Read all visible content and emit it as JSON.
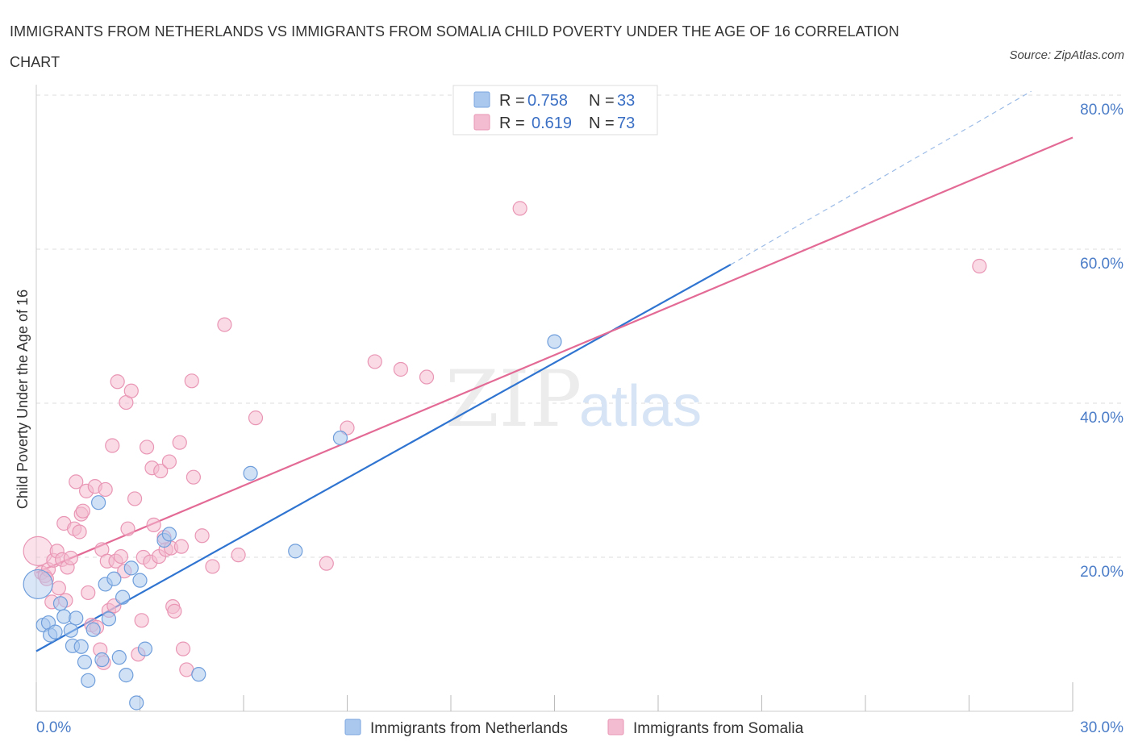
{
  "title": "IMMIGRANTS FROM NETHERLANDS VS IMMIGRANTS FROM SOMALIA CHILD POVERTY UNDER THE AGE OF 16 CORRELATION CHART",
  "source": "Source: ZipAtlas.com",
  "watermark": {
    "zip": "ZIP",
    "atlas": "atlas"
  },
  "colors": {
    "netherlands": "#2f74d0",
    "netherlands_fill": "#aac8ee",
    "somalia": "#e36a95",
    "somalia_fill": "#f4bcd0",
    "tick_text": "#4a7cc7",
    "grid": "#dddddd"
  },
  "legend": {
    "netherlands": {
      "r_label": "R =",
      "r_value": "0.758",
      "n_label": "N =",
      "n_value": "33"
    },
    "somalia": {
      "r_label": "R =",
      "r_value": "0.619",
      "n_label": "N =",
      "n_value": "73"
    }
  },
  "chart_data": {
    "type": "scatter",
    "title": "IMMIGRANTS FROM NETHERLANDS VS IMMIGRANTS FROM SOMALIA CHILD POVERTY UNDER THE AGE OF 16 CORRELATION CHART",
    "xlabel": "",
    "ylabel": "Child Poverty Under the Age of 16",
    "xlim": [
      0,
      30
    ],
    "ylim": [
      0,
      80
    ],
    "x_tick_labels": [
      "0.0%",
      "30.0%"
    ],
    "y_ticks": [
      20,
      40,
      60,
      80
    ],
    "y_tick_labels": [
      "20.0%",
      "40.0%",
      "60.0%",
      "80.0%"
    ],
    "grid": true,
    "legend_position": "top-center",
    "series": [
      {
        "name": "Immigrants from Netherlands",
        "color": "#2f74d0",
        "trend": {
          "x": [
            0,
            20.1
          ],
          "y": [
            7.8,
            58.0
          ],
          "dashed_extension_to": [
            28.8,
            80.5
          ]
        },
        "points": [
          {
            "x": 0.05,
            "y": 16.5,
            "big": true
          },
          {
            "x": 0.2,
            "y": 11.2
          },
          {
            "x": 0.35,
            "y": 11.5
          },
          {
            "x": 0.4,
            "y": 9.9
          },
          {
            "x": 0.55,
            "y": 10.3
          },
          {
            "x": 0.7,
            "y": 14.0
          },
          {
            "x": 0.8,
            "y": 12.3
          },
          {
            "x": 1.0,
            "y": 10.5
          },
          {
            "x": 1.05,
            "y": 8.5
          },
          {
            "x": 1.15,
            "y": 12.1
          },
          {
            "x": 1.3,
            "y": 8.4
          },
          {
            "x": 1.4,
            "y": 6.4
          },
          {
            "x": 1.5,
            "y": 4.0
          },
          {
            "x": 1.65,
            "y": 10.6
          },
          {
            "x": 1.8,
            "y": 27.1
          },
          {
            "x": 1.9,
            "y": 6.7
          },
          {
            "x": 2.0,
            "y": 16.5
          },
          {
            "x": 2.1,
            "y": 12.0
          },
          {
            "x": 2.25,
            "y": 17.2
          },
          {
            "x": 2.4,
            "y": 7.0
          },
          {
            "x": 2.5,
            "y": 14.8
          },
          {
            "x": 2.6,
            "y": 4.7
          },
          {
            "x": 2.75,
            "y": 18.6
          },
          {
            "x": 2.9,
            "y": 1.1
          },
          {
            "x": 3.0,
            "y": 17.0
          },
          {
            "x": 3.15,
            "y": 8.1
          },
          {
            "x": 3.7,
            "y": 22.2
          },
          {
            "x": 3.85,
            "y": 23.0
          },
          {
            "x": 4.7,
            "y": 4.8
          },
          {
            "x": 6.2,
            "y": 30.9
          },
          {
            "x": 7.5,
            "y": 20.8
          },
          {
            "x": 8.8,
            "y": 35.5
          },
          {
            "x": 15.0,
            "y": 48.0
          }
        ]
      },
      {
        "name": "Immigrants from Somalia",
        "color": "#e36a95",
        "trend": {
          "x": [
            0,
            30
          ],
          "y": [
            18.0,
            74.5
          ]
        },
        "points": [
          {
            "x": 0.05,
            "y": 20.8,
            "big": true
          },
          {
            "x": 0.15,
            "y": 18.0
          },
          {
            "x": 0.25,
            "y": 17.6
          },
          {
            "x": 0.35,
            "y": 18.4
          },
          {
            "x": 0.45,
            "y": 14.2
          },
          {
            "x": 0.5,
            "y": 19.6
          },
          {
            "x": 0.6,
            "y": 20.8
          },
          {
            "x": 0.65,
            "y": 16.0
          },
          {
            "x": 0.75,
            "y": 19.7
          },
          {
            "x": 0.8,
            "y": 24.4
          },
          {
            "x": 0.85,
            "y": 14.4
          },
          {
            "x": 0.9,
            "y": 18.7
          },
          {
            "x": 1.0,
            "y": 19.9
          },
          {
            "x": 1.1,
            "y": 23.7
          },
          {
            "x": 1.15,
            "y": 29.8
          },
          {
            "x": 1.25,
            "y": 23.3
          },
          {
            "x": 1.3,
            "y": 25.6
          },
          {
            "x": 1.35,
            "y": 26.0
          },
          {
            "x": 1.45,
            "y": 28.6
          },
          {
            "x": 1.5,
            "y": 15.4
          },
          {
            "x": 1.6,
            "y": 11.2
          },
          {
            "x": 1.7,
            "y": 29.2
          },
          {
            "x": 1.75,
            "y": 10.9
          },
          {
            "x": 1.85,
            "y": 8.0
          },
          {
            "x": 1.9,
            "y": 21.0
          },
          {
            "x": 1.95,
            "y": 6.3
          },
          {
            "x": 2.0,
            "y": 28.8
          },
          {
            "x": 2.05,
            "y": 19.5
          },
          {
            "x": 2.1,
            "y": 13.1
          },
          {
            "x": 2.2,
            "y": 34.5
          },
          {
            "x": 2.25,
            "y": 13.7
          },
          {
            "x": 2.3,
            "y": 19.5
          },
          {
            "x": 2.35,
            "y": 42.8
          },
          {
            "x": 2.45,
            "y": 20.1
          },
          {
            "x": 2.55,
            "y": 18.2
          },
          {
            "x": 2.6,
            "y": 40.1
          },
          {
            "x": 2.65,
            "y": 23.7
          },
          {
            "x": 2.75,
            "y": 41.6
          },
          {
            "x": 2.85,
            "y": 27.6
          },
          {
            "x": 2.95,
            "y": 7.4
          },
          {
            "x": 3.05,
            "y": 11.8
          },
          {
            "x": 3.1,
            "y": 20.0
          },
          {
            "x": 3.2,
            "y": 34.3
          },
          {
            "x": 3.3,
            "y": 19.4
          },
          {
            "x": 3.35,
            "y": 31.6
          },
          {
            "x": 3.4,
            "y": 24.2
          },
          {
            "x": 3.55,
            "y": 20.1
          },
          {
            "x": 3.6,
            "y": 31.2
          },
          {
            "x": 3.7,
            "y": 22.6
          },
          {
            "x": 3.75,
            "y": 21.0
          },
          {
            "x": 3.85,
            "y": 32.4
          },
          {
            "x": 3.9,
            "y": 21.2
          },
          {
            "x": 3.95,
            "y": 13.6
          },
          {
            "x": 4.0,
            "y": 13.0
          },
          {
            "x": 4.15,
            "y": 34.9
          },
          {
            "x": 4.2,
            "y": 21.4
          },
          {
            "x": 4.25,
            "y": 8.1
          },
          {
            "x": 4.35,
            "y": 5.4
          },
          {
            "x": 4.5,
            "y": 42.9
          },
          {
            "x": 4.55,
            "y": 30.4
          },
          {
            "x": 4.8,
            "y": 22.8
          },
          {
            "x": 5.1,
            "y": 18.8
          },
          {
            "x": 5.45,
            "y": 50.2
          },
          {
            "x": 5.85,
            "y": 20.3
          },
          {
            "x": 6.35,
            "y": 38.1
          },
          {
            "x": 8.4,
            "y": 19.2
          },
          {
            "x": 9.0,
            "y": 36.8
          },
          {
            "x": 9.8,
            "y": 45.4
          },
          {
            "x": 10.55,
            "y": 44.4
          },
          {
            "x": 11.3,
            "y": 43.4
          },
          {
            "x": 14.0,
            "y": 65.3
          },
          {
            "x": 27.3,
            "y": 57.8
          },
          {
            "x": 0.3,
            "y": 17.2
          }
        ]
      }
    ]
  }
}
